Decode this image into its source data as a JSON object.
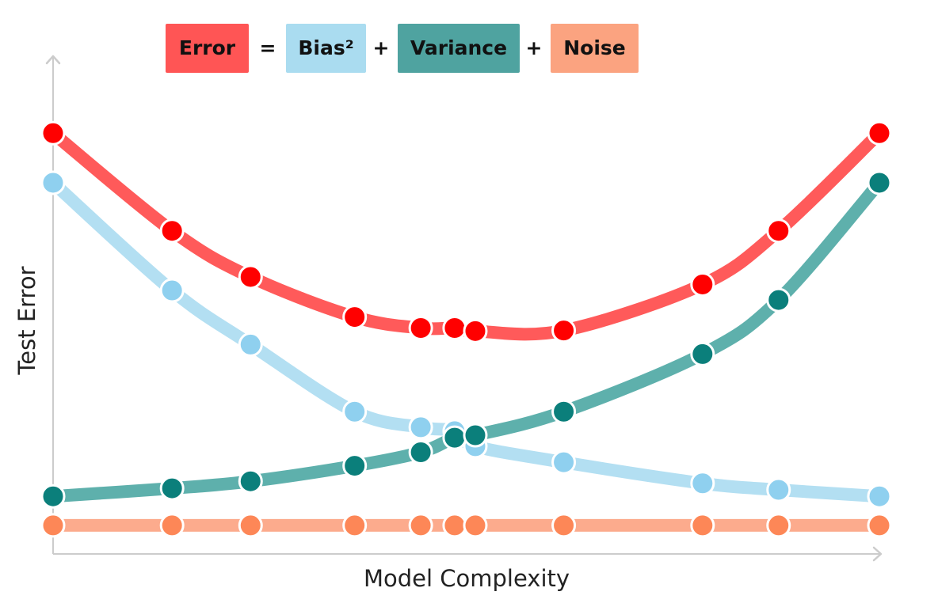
{
  "equation": {
    "error_label": "Error",
    "equals": "=",
    "bias_label": "Bias²",
    "plus1": "+",
    "variance_label": "Variance",
    "plus2": "+",
    "noise_label": "Noise"
  },
  "colors": {
    "error_box": "#ff5555",
    "bias_box": "#aadcf0",
    "variance_box": "#4fa3a0",
    "noise_box": "#fba380",
    "axis": "#cccccc"
  },
  "chart_data": {
    "type": "line",
    "title": "Error = Bias² + Variance + Noise",
    "xlabel": "Model Complexity",
    "ylabel": "Test Error",
    "xlim": [
      0,
      100
    ],
    "ylim": [
      0,
      100
    ],
    "grid": false,
    "x": [
      0,
      14.4,
      23.9,
      36.5,
      44.5,
      48.6,
      51.1,
      61.8,
      78.6,
      87.8,
      100
    ],
    "series": [
      {
        "name": "Error",
        "line_color": "#ff5a5a",
        "marker_color": "#ff0000",
        "values": [
          84,
          64.5,
          55.3,
          47.3,
          45.1,
          45.1,
          44.5,
          44.6,
          53.8,
          64.5,
          84
        ]
      },
      {
        "name": "Bias²",
        "line_color": "#b3dff2",
        "marker_color": "#8fd0ef",
        "values": [
          74.1,
          52.6,
          41.8,
          28.4,
          25.3,
          24.5,
          21.5,
          18.3,
          14.1,
          12.8,
          11.5
        ]
      },
      {
        "name": "Variance",
        "line_color": "#5eb0ac",
        "marker_color": "#0b7f7b",
        "values": [
          11.5,
          13.1,
          14.5,
          17.6,
          20.3,
          23.2,
          23.7,
          28.4,
          39.9,
          50.7,
          74.1
        ]
      },
      {
        "name": "Noise",
        "line_color": "#fcab8d",
        "marker_color": "#fd8757",
        "values": [
          5.7,
          5.7,
          5.7,
          5.7,
          5.7,
          5.7,
          5.7,
          5.7,
          5.7,
          5.7,
          5.7
        ]
      }
    ]
  }
}
